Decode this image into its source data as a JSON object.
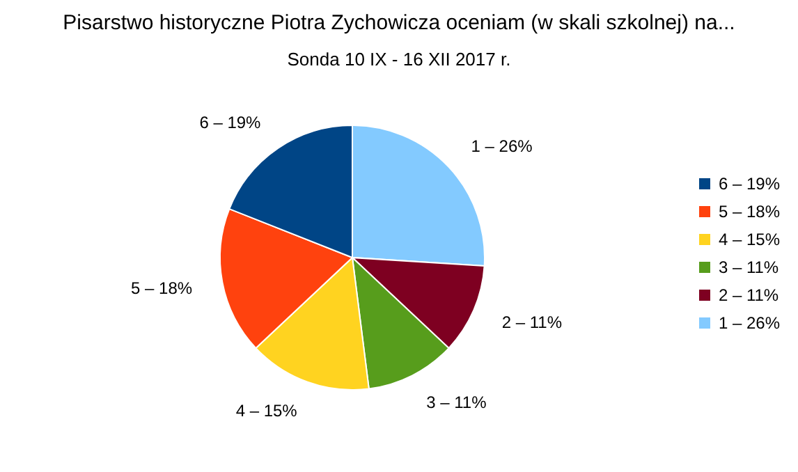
{
  "chart_data": {
    "type": "pie",
    "title": "Pisarstwo historyczne Piotra Zychowicza oceniam (w skali szkolnej) na...",
    "subtitle": "Sonda 10 IX - 16 XII 2017 r.",
    "categories": [
      "1 – 26%",
      "2 – 11%",
      "3 – 11%",
      "4 – 15%",
      "5 – 18%",
      "6 – 19%"
    ],
    "values": [
      26,
      11,
      11,
      15,
      18,
      19
    ],
    "colors": [
      "#83caff",
      "#7e0021",
      "#579d1c",
      "#ffd320",
      "#ff420e",
      "#004586"
    ],
    "legend": "right"
  }
}
